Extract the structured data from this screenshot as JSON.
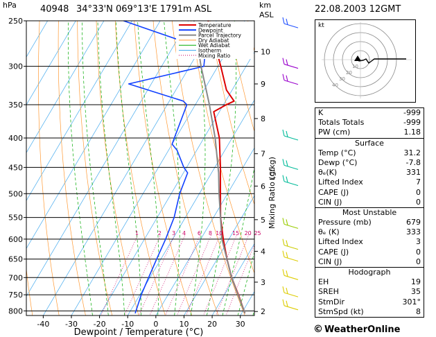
{
  "header": {
    "station": "40948",
    "location": "34°33'N  069°13'E  1791m  ASL",
    "datetime": "22.08.2003  12GMT",
    "hpa_label": "hPa",
    "km_label": "km",
    "asl_label": "ASL"
  },
  "chart_data": {
    "type": "line",
    "chart_kind": "skew-T log-P sounding",
    "xlabel": "Dewpoint / Temperature (°C)",
    "ylabel_right": "Mixing Ratio (g/kg)",
    "ylabel_lcl": "LCL",
    "pressure_levels": [
      250,
      300,
      350,
      400,
      450,
      500,
      550,
      600,
      650,
      700,
      750,
      800
    ],
    "temperature_ticks": [
      -40,
      -30,
      -20,
      -10,
      0,
      10,
      20,
      30
    ],
    "xlim": [
      -46,
      35
    ],
    "ylim": [
      815,
      250
    ],
    "height_km_ticks": [
      {
        "km": "10",
        "p": 283
      },
      {
        "km": "9",
        "p": 322
      },
      {
        "km": "8",
        "p": 370
      },
      {
        "km": "7",
        "p": 426
      },
      {
        "km": "6",
        "p": 485
      },
      {
        "km": "5",
        "p": 555
      },
      {
        "km": "4",
        "p": 630
      },
      {
        "km": "3",
        "p": 713
      },
      {
        "km": "2",
        "p": 802
      }
    ],
    "lcl_pressure": 460,
    "mixing_ratio_labels": [
      "1",
      "2",
      "3",
      "4",
      "6",
      "8",
      "10",
      "15",
      "20",
      "25"
    ],
    "legend": [
      "Temperature",
      "Dewpoint",
      "Parcel Trajectory",
      "Dry Adiabat",
      "Wet Adiabat",
      "Isotherm",
      "Mixing Ratio"
    ],
    "legend_placement": "top-center",
    "series": [
      {
        "name": "Temperature",
        "color": "#dd0000",
        "points": [
          [
            808,
            31.2
          ],
          [
            750,
            25
          ],
          [
            700,
            19
          ],
          [
            650,
            13.5
          ],
          [
            600,
            8
          ],
          [
            550,
            2.5
          ],
          [
            500,
            -2.5
          ],
          [
            450,
            -8
          ],
          [
            400,
            -14.5
          ],
          [
            360,
            -22
          ],
          [
            350,
            -19
          ],
          [
            345,
            -17
          ],
          [
            330,
            -22
          ],
          [
            300,
            -29
          ],
          [
            270,
            -37
          ],
          [
            250,
            -43
          ]
        ]
      },
      {
        "name": "Dewpoint",
        "color": "#1040ff",
        "points": [
          [
            808,
            -7.8
          ],
          [
            750,
            -9.5
          ],
          [
            700,
            -10.5
          ],
          [
            650,
            -11.5
          ],
          [
            600,
            -12.5
          ],
          [
            550,
            -14
          ],
          [
            500,
            -17
          ],
          [
            460,
            -18.5
          ],
          [
            450,
            -21
          ],
          [
            420,
            -27
          ],
          [
            410,
            -30
          ],
          [
            400,
            -30.5
          ],
          [
            350,
            -33
          ],
          [
            345,
            -35
          ],
          [
            322,
            -58
          ],
          [
            300,
            -35
          ],
          [
            280,
            -38
          ],
          [
            250,
            -73
          ]
        ]
      },
      {
        "name": "Parcel Trajectory",
        "color": "#888888",
        "points": [
          [
            808,
            31.2
          ],
          [
            700,
            19
          ],
          [
            600,
            7.5
          ],
          [
            500,
            -3
          ],
          [
            460,
            -7.5
          ],
          [
            400,
            -16
          ],
          [
            350,
            -25
          ],
          [
            300,
            -36
          ],
          [
            250,
            -48
          ]
        ]
      }
    ],
    "wind_barbs": [
      {
        "p": 255,
        "color": "#2050ff"
      },
      {
        "p": 300,
        "color": "#9900cc"
      },
      {
        "p": 320,
        "color": "#9900cc"
      },
      {
        "p": 400,
        "color": "#00bb99"
      },
      {
        "p": 450,
        "color": "#00bb99"
      },
      {
        "p": 480,
        "color": "#00bb99"
      },
      {
        "p": 570,
        "color": "#99cc00"
      },
      {
        "p": 620,
        "color": "#cccc00"
      },
      {
        "p": 650,
        "color": "#ddcc00"
      },
      {
        "p": 700,
        "color": "#ddcc00"
      },
      {
        "p": 750,
        "color": "#ddcc00"
      },
      {
        "p": 790,
        "color": "#ddcc00"
      }
    ],
    "colors": {
      "dry_adiabat": "#ff9933",
      "wet_adiabat": "#00aa00",
      "mixing_ratio": "#cc0066",
      "isotherm": "#44aaee"
    }
  },
  "hodograph": {
    "unit_label": "kt",
    "ring_labels": [
      "10",
      "20",
      "30",
      "40"
    ]
  },
  "info_table": {
    "indices": [
      {
        "label": "K",
        "value": "-999"
      },
      {
        "label": "Totals Totals",
        "value": "-999"
      },
      {
        "label": "PW (cm)",
        "value": "1.18"
      }
    ],
    "surface": {
      "title": "Surface",
      "rows": [
        {
          "label": "Temp (°C)",
          "value": "31.2"
        },
        {
          "label": "Dewp (°C)",
          "value": "-7.8"
        },
        {
          "label": "θₑ(K)",
          "value": "331"
        },
        {
          "label": "Lifted Index",
          "value": "7"
        },
        {
          "label": "CAPE (J)",
          "value": "0"
        },
        {
          "label": "CIN (J)",
          "value": "0"
        }
      ]
    },
    "most_unstable": {
      "title": "Most Unstable",
      "rows": [
        {
          "label": "Pressure (mb)",
          "value": "679"
        },
        {
          "label": "θₑ (K)",
          "value": "333"
        },
        {
          "label": "Lifted Index",
          "value": "3"
        },
        {
          "label": "CAPE (J)",
          "value": "0"
        },
        {
          "label": "CIN (J)",
          "value": "0"
        }
      ]
    },
    "hodograph_params": {
      "title": "Hodograph",
      "rows": [
        {
          "label": "EH",
          "value": "19"
        },
        {
          "label": "SREH",
          "value": "35"
        },
        {
          "label": "StmDir",
          "value": "301°"
        },
        {
          "label": "StmSpd (kt)",
          "value": "8"
        }
      ]
    }
  },
  "footer": {
    "copyright_symbol": "©",
    "brand": "WeatherOnline"
  }
}
